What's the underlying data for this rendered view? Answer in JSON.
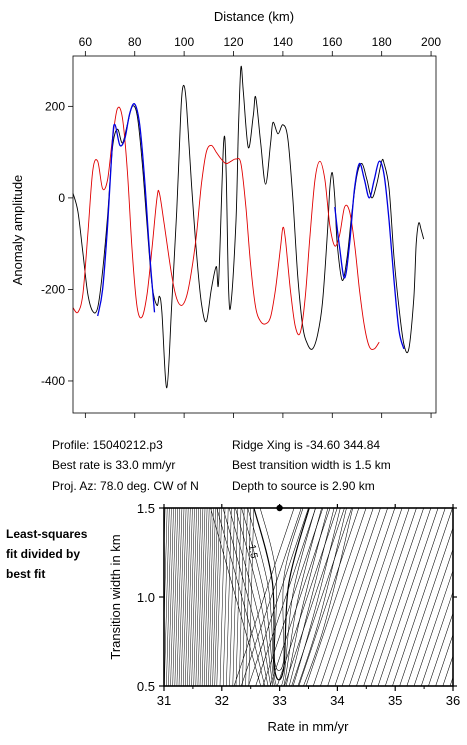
{
  "chart_data": [
    {
      "type": "line",
      "xlabel": "Distance (km)",
      "ylabel": "Anomaly amplitude",
      "xlim": [
        55,
        202
      ],
      "ylim": [
        -470,
        310
      ],
      "x_ticks": [
        60,
        80,
        100,
        120,
        140,
        160,
        180,
        200
      ],
      "y_ticks": [
        200,
        0,
        -200,
        -400
      ],
      "grid": false,
      "series": [
        {
          "color": "#000000",
          "points": [
            [
              55,
              10
            ],
            [
              57,
              -30
            ],
            [
              59,
              -120
            ],
            [
              61,
              -210
            ],
            [
              63,
              -248
            ],
            [
              65,
              -240
            ],
            [
              67,
              -160
            ],
            [
              69,
              -40
            ],
            [
              71,
              110
            ],
            [
              73,
              150
            ],
            [
              75,
              120
            ],
            [
              77,
              160
            ],
            [
              79,
              200
            ],
            [
              81,
              180
            ],
            [
              83,
              80
            ],
            [
              85,
              -60
            ],
            [
              87,
              -190
            ],
            [
              89,
              -235
            ],
            [
              90,
              -215
            ],
            [
              91,
              -250
            ],
            [
              93,
              -415
            ],
            [
              95,
              -230
            ],
            [
              97,
              -30
            ],
            [
              98,
              100
            ],
            [
              99,
              220
            ],
            [
              100,
              245
            ],
            [
              101,
              200
            ],
            [
              103,
              30
            ],
            [
              105,
              -120
            ],
            [
              107,
              -230
            ],
            [
              109,
              -270
            ],
            [
              111,
              -200
            ],
            [
              113,
              -150
            ],
            [
              114,
              -180
            ],
            [
              116,
              120
            ],
            [
              117,
              60
            ],
            [
              118,
              -200
            ],
            [
              119,
              -230
            ],
            [
              121,
              -50
            ],
            [
              122,
              150
            ],
            [
              123,
              285
            ],
            [
              124,
              230
            ],
            [
              126,
              110
            ],
            [
              128,
              180
            ],
            [
              129,
              220
            ],
            [
              131,
              120
            ],
            [
              133,
              30
            ],
            [
              135,
              120
            ],
            [
              136,
              165
            ],
            [
              138,
              140
            ],
            [
              140,
              160
            ],
            [
              142,
              130
            ],
            [
              144,
              0
            ],
            [
              146,
              -170
            ],
            [
              148,
              -280
            ],
            [
              150,
              -320
            ],
            [
              152,
              -330
            ],
            [
              154,
              -300
            ],
            [
              156,
              -230
            ],
            [
              158,
              -80
            ],
            [
              159,
              20
            ],
            [
              160,
              55
            ],
            [
              161,
              0
            ],
            [
              162,
              -100
            ],
            [
              164,
              -180
            ],
            [
              166,
              -130
            ],
            [
              168,
              -30
            ],
            [
              170,
              50
            ],
            [
              172,
              75
            ],
            [
              174,
              40
            ],
            [
              176,
              0
            ],
            [
              178,
              30
            ],
            [
              180,
              80
            ],
            [
              181,
              75
            ],
            [
              183,
              20
            ],
            [
              185,
              -130
            ],
            [
              187,
              -240
            ],
            [
              189,
              -320
            ],
            [
              191,
              -330
            ],
            [
              193,
              -220
            ],
            [
              194,
              -100
            ],
            [
              195,
              -55
            ],
            [
              196,
              -70
            ],
            [
              197,
              -90
            ]
          ]
        },
        {
          "color": "#e00000",
          "points": [
            [
              55,
              -240
            ],
            [
              57,
              -250
            ],
            [
              59,
              -210
            ],
            [
              61,
              -80
            ],
            [
              63,
              60
            ],
            [
              65,
              80
            ],
            [
              67,
              20
            ],
            [
              69,
              40
            ],
            [
              71,
              130
            ],
            [
              73,
              195
            ],
            [
              75,
              175
            ],
            [
              77,
              60
            ],
            [
              79,
              -120
            ],
            [
              81,
              -240
            ],
            [
              83,
              -260
            ],
            [
              85,
              -210
            ],
            [
              87,
              -110
            ],
            [
              89,
              0
            ],
            [
              90,
              10
            ],
            [
              92,
              -60
            ],
            [
              95,
              -170
            ],
            [
              97,
              -220
            ],
            [
              99,
              -235
            ],
            [
              101,
              -215
            ],
            [
              103,
              -160
            ],
            [
              105,
              -80
            ],
            [
              107,
              30
            ],
            [
              109,
              100
            ],
            [
              111,
              115
            ],
            [
              113,
              100
            ],
            [
              115,
              85
            ],
            [
              117,
              75
            ],
            [
              119,
              80
            ],
            [
              121,
              85
            ],
            [
              123,
              75
            ],
            [
              125,
              -20
            ],
            [
              127,
              -150
            ],
            [
              129,
              -240
            ],
            [
              131,
              -270
            ],
            [
              133,
              -275
            ],
            [
              135,
              -260
            ],
            [
              137,
              -200
            ],
            [
              139,
              -110
            ],
            [
              140,
              -65
            ],
            [
              141,
              -90
            ],
            [
              143,
              -200
            ],
            [
              145,
              -280
            ],
            [
              147,
              -295
            ],
            [
              149,
              -220
            ],
            [
              151,
              -80
            ],
            [
              153,
              40
            ],
            [
              155,
              80
            ],
            [
              157,
              40
            ],
            [
              159,
              -60
            ],
            [
              161,
              -105
            ],
            [
              163,
              -80
            ],
            [
              165,
              -20
            ],
            [
              167,
              -30
            ],
            [
              169,
              -100
            ],
            [
              171,
              -200
            ],
            [
              173,
              -280
            ],
            [
              175,
              -325
            ],
            [
              177,
              -330
            ],
            [
              179,
              -315
            ]
          ]
        },
        {
          "color": "#0000e0",
          "segments": [
            [
              [
                65,
                -258
              ],
              [
                67,
                -200
              ],
              [
                69,
                -60
              ],
              [
                71,
                125
              ],
              [
                72,
                160
              ],
              [
                74,
                115
              ],
              [
                76,
                130
              ],
              [
                78,
                185
              ],
              [
                80,
                205
              ],
              [
                82,
                160
              ],
              [
                84,
                40
              ],
              [
                86,
                -120
              ],
              [
                88,
                -250
              ]
            ],
            [
              [
                161,
                -20
              ],
              [
                163,
                -110
              ],
              [
                165,
                -175
              ],
              [
                167,
                -100
              ],
              [
                169,
                20
              ],
              [
                171,
                75
              ],
              [
                173,
                40
              ],
              [
                175,
                0
              ],
              [
                177,
                40
              ],
              [
                179,
                80
              ],
              [
                181,
                50
              ],
              [
                183,
                -50
              ],
              [
                185,
                -180
              ],
              [
                187,
                -290
              ],
              [
                189,
                -330
              ]
            ]
          ]
        }
      ]
    },
    {
      "type": "contour",
      "xlabel": "Rate in mm/yr",
      "ylabel": "Transition width in km",
      "xlim": [
        31,
        36
      ],
      "ylim": [
        0.5,
        1.5
      ],
      "x_ticks": [
        31,
        32,
        33,
        34,
        35,
        36
      ],
      "y_ticks": [
        0.5,
        1.0,
        1.5
      ],
      "contour_label": "1.5",
      "best_fit": {
        "rate": 33.0,
        "width": 1.5
      }
    }
  ],
  "info": {
    "profile": "Profile: 15040212.p3",
    "best_rate": "Best rate is 33.0 mm/yr",
    "proj_az": "Proj. Az: 78.0 deg. CW of N",
    "ridge_xing": "Ridge Xing is -34.60 344.84",
    "best_width": "Best transition width is 1.5 km",
    "depth": "Depth to source is   2.90 km"
  },
  "note": "Least-squares\nfit divided by\nbest fit"
}
